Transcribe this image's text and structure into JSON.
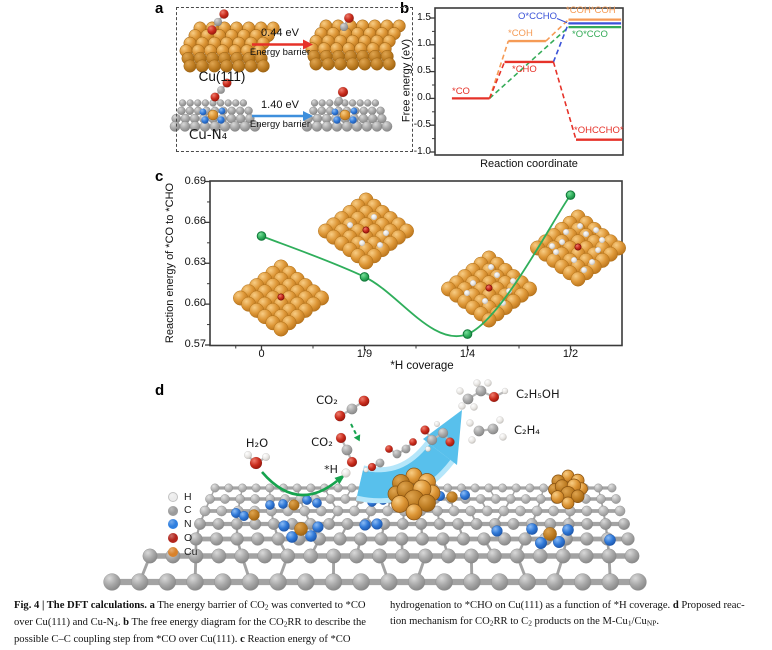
{
  "figure": {
    "panel_labels": {
      "a": "a",
      "b": "b",
      "c": "c",
      "d": "d"
    }
  },
  "panel_a": {
    "surfaces": [
      {
        "name": "Cu(111)",
        "barrier": "0.44 eV",
        "barrier_caption": "Energy barrier",
        "arrow_color": "#e63229"
      },
      {
        "name": "Cu-N₄",
        "barrier": "1.40 eV",
        "barrier_caption": "Energy barrier",
        "arrow_color": "#3e8fdc"
      }
    ]
  },
  "panel_d": {
    "labels": {
      "h2o": "H₂O",
      "co2_gas": "CO₂",
      "co2_ads": "CO₂",
      "h_ads": "*H",
      "ethanol": "C₂H₅OH",
      "ethylene": "C₂H₄"
    },
    "legend": [
      {
        "symbol": "H",
        "color": "#ececec"
      },
      {
        "symbol": "C",
        "color": "#9b9b9b"
      },
      {
        "symbol": "N",
        "color": "#2f7fe0"
      },
      {
        "symbol": "O",
        "color": "#b2251d"
      },
      {
        "symbol": "Cu",
        "color": "#d9822b"
      }
    ]
  },
  "chart_data": [
    {
      "id": "free-energy-diagram",
      "type": "line",
      "title": "",
      "xlabel": "Reaction coordinate",
      "ylabel": "Free energy (eV)",
      "ylim": [
        -1.0,
        1.5
      ],
      "yticks": [
        1.5,
        1.0,
        0.5,
        0.0,
        -0.5,
        -1.0
      ],
      "grid": false,
      "levels": [
        {
          "species": "*CO",
          "energy": 0.0,
          "color": "#e63229",
          "x": [
            0.09,
            0.29
          ]
        },
        {
          "species": "*COH",
          "energy": 1.07,
          "color": "#f59b56",
          "x": [
            0.39,
            0.59
          ]
        },
        {
          "species": "*CHO",
          "energy": 0.68,
          "color": "#e63229",
          "x": [
            0.37,
            0.63
          ]
        },
        {
          "species": "*COH*COH",
          "energy": 1.47,
          "color": "#f59b56",
          "x": [
            0.71,
            0.99
          ]
        },
        {
          "species": "O*CCHO",
          "energy": 1.4,
          "color": "#3a52d8",
          "x": [
            0.71,
            0.99
          ]
        },
        {
          "species": "*O*CCO",
          "energy": 1.33,
          "color": "#34ab57",
          "x": [
            0.71,
            0.99
          ]
        },
        {
          "species": "*OHCCHO*",
          "energy": -0.77,
          "color": "#e63229",
          "x": [
            0.75,
            0.995
          ]
        }
      ],
      "paths": [
        {
          "color": "#f59b56",
          "route": [
            "*CO",
            "*COH",
            "*COH*COH"
          ]
        },
        {
          "color": "#34ab57",
          "route": [
            "*CO",
            "*O*CCO"
          ]
        },
        {
          "color": "#e63229",
          "route": [
            "*CO",
            "*CHO",
            "*OHCCHO*"
          ]
        },
        {
          "color": "#3a52d8",
          "route": [
            "*CHO",
            "O*CCHO"
          ]
        }
      ]
    },
    {
      "id": "reaction-energy-vs-coverage",
      "type": "line",
      "xlabel": "*H coverage",
      "ylabel": "Reaction energy of *CO to *CHO",
      "categories": [
        "0",
        "1/9",
        "1/4",
        "1/2"
      ],
      "values": [
        0.65,
        0.62,
        0.578,
        0.68
      ],
      "ylim": [
        0.57,
        0.69
      ],
      "yticks": [
        0.69,
        0.66,
        0.63,
        0.6,
        0.57
      ],
      "color": "#2fae5b",
      "grid": false,
      "inset_h_counts": [
        0,
        5,
        8,
        12
      ]
    }
  ],
  "caption": {
    "left_lines": [
      [
        {
          "t": "Fig. 4 | The DFT calculations. ",
          "b": true
        },
        {
          "t": "a",
          "b": true
        },
        {
          "t": " The energy barrier of CO"
        },
        {
          "t": "2",
          "sub": true
        },
        {
          "t": " was converted to *CO"
        }
      ],
      [
        {
          "t": "over Cu(111) and Cu-N"
        },
        {
          "t": "4",
          "sub": true
        },
        {
          "t": ". "
        },
        {
          "t": "b",
          "b": true
        },
        {
          "t": " The free energy diagram for the CO"
        },
        {
          "t": "2",
          "sub": true
        },
        {
          "t": "RR to describe the"
        }
      ],
      [
        {
          "t": "possible C–C coupling step from *CO over Cu(111). "
        },
        {
          "t": "c",
          "b": true
        },
        {
          "t": " Reaction energy of *CO"
        }
      ]
    ],
    "right_lines": [
      [
        {
          "t": "hydrogenation to *CHO on Cu(111) as a function of *H coverage. "
        },
        {
          "t": "d",
          "b": true
        },
        {
          "t": " Proposed reac-"
        }
      ],
      [
        {
          "t": "tion mechanism for CO"
        },
        {
          "t": "2",
          "sub": true
        },
        {
          "t": "RR to C"
        },
        {
          "t": "2",
          "sub": true
        },
        {
          "t": " products on the M-Cu"
        },
        {
          "t": "1",
          "sub": true
        },
        {
          "t": "/Cu"
        },
        {
          "t": "NP",
          "sub": true
        },
        {
          "t": "."
        }
      ]
    ]
  }
}
